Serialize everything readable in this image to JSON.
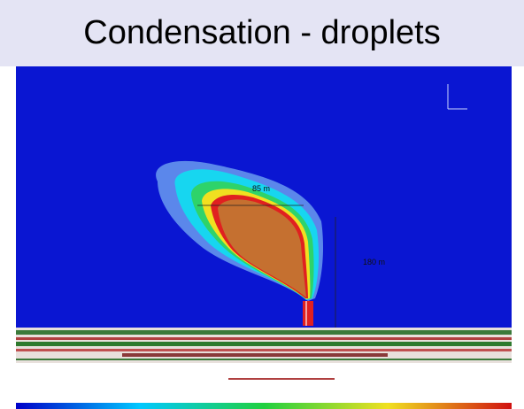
{
  "header": {
    "title": "Condensation - droplets"
  },
  "annotations": {
    "width_label": "85 m",
    "height_label": "180 m"
  }
}
